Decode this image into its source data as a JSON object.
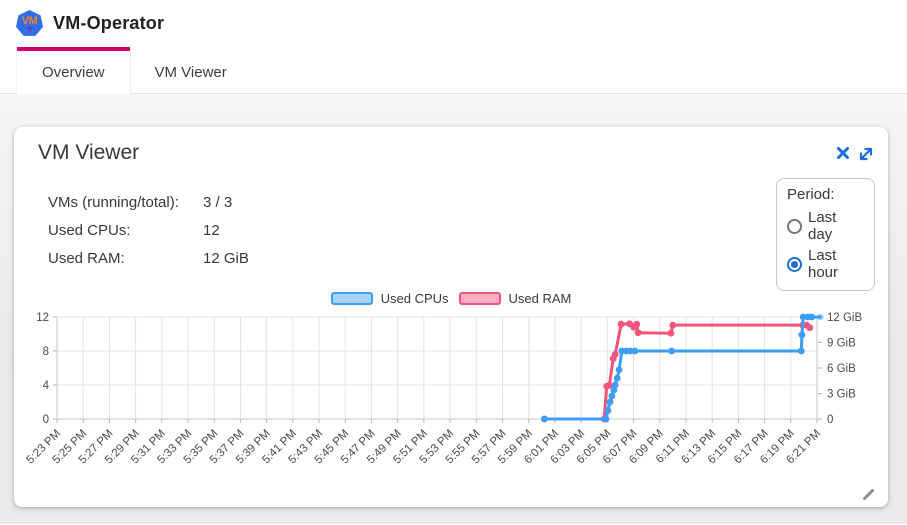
{
  "header": {
    "app_title": "VM-Operator",
    "logo_text": "VM"
  },
  "tabs": [
    {
      "label": "Overview",
      "active": true
    },
    {
      "label": "VM Viewer",
      "active": false
    }
  ],
  "panel": {
    "title": "VM Viewer",
    "stats": [
      {
        "label": "VMs (running/total):",
        "value": "3 / 3"
      },
      {
        "label": "Used CPUs:",
        "value": "12"
      },
      {
        "label": "Used RAM:",
        "value": "12 GiB"
      }
    ],
    "period": {
      "label": "Period:",
      "options": [
        {
          "label": "Last day",
          "selected": false
        },
        {
          "label": "Last hour",
          "selected": true
        }
      ]
    }
  },
  "colors": {
    "accent_tab": "#d4006e",
    "icon_blue": "#1a6fd4",
    "k8s_blue": "#326de6",
    "cpu_line": "#3d9df3",
    "cpu_fill": "#a9d2f7",
    "ram_line": "#f2547c",
    "ram_fill": "#f9afc1"
  },
  "chart_data": {
    "type": "line",
    "title": "",
    "grid": true,
    "legend_position": "top-center",
    "legend": [
      {
        "name": "Used CPUs",
        "color": "#3d9df3",
        "fill": "#a9d2f7"
      },
      {
        "name": "Used RAM",
        "color": "#f2547c",
        "fill": "#f9afc1"
      }
    ],
    "x_tick_labels": [
      "5:23 PM",
      "5:25 PM",
      "5:27 PM",
      "5:29 PM",
      "5:31 PM",
      "5:33 PM",
      "5:35 PM",
      "5:37 PM",
      "5:39 PM",
      "5:41 PM",
      "5:43 PM",
      "5:45 PM",
      "5:47 PM",
      "5:49 PM",
      "5:51 PM",
      "5:53 PM",
      "5:55 PM",
      "5:57 PM",
      "5:59 PM",
      "6:01 PM",
      "6:03 PM",
      "6:05 PM",
      "6:07 PM",
      "6:09 PM",
      "6:11 PM",
      "6:13 PM",
      "6:15 PM",
      "6:17 PM",
      "6:19 PM",
      "6:21 PM"
    ],
    "x_unit": "minutes after 5:23 PM",
    "x_range_minutes": [
      0,
      58
    ],
    "left_axis": {
      "ticks": [
        0,
        4,
        8,
        12
      ],
      "range": [
        0,
        12
      ]
    },
    "right_axis": {
      "tick_labels": [
        "0",
        "3 GiB",
        "6 GiB",
        "9 GiB",
        "12 GiB"
      ],
      "range_gib": [
        0,
        12
      ]
    },
    "series": [
      {
        "name": "Used CPUs",
        "axis": "left",
        "color": "#3d9df3",
        "last_point_faded": true,
        "points": [
          [
            37.2,
            0
          ],
          [
            41.9,
            0
          ],
          [
            42.05,
            1
          ],
          [
            42.2,
            2
          ],
          [
            42.35,
            2.7
          ],
          [
            42.5,
            3.4
          ],
          [
            42.6,
            4
          ],
          [
            42.75,
            4.8
          ],
          [
            42.9,
            5.8
          ],
          [
            43.1,
            8
          ],
          [
            43.45,
            8
          ],
          [
            43.75,
            8
          ],
          [
            44.1,
            8
          ],
          [
            46.9,
            8
          ],
          [
            56.8,
            8
          ],
          [
            56.85,
            9.9
          ],
          [
            56.95,
            12
          ],
          [
            57.3,
            12
          ],
          [
            57.6,
            12
          ],
          [
            58.25,
            12
          ]
        ]
      },
      {
        "name": "Used RAM",
        "axis": "right",
        "color": "#f2547c",
        "points": [
          [
            37.2,
            0
          ],
          [
            41.75,
            0
          ],
          [
            41.95,
            3.85
          ],
          [
            42.15,
            3.95
          ],
          [
            42.45,
            7.1
          ],
          [
            42.6,
            7.6
          ],
          [
            43.05,
            11.15
          ],
          [
            43.7,
            11.2
          ],
          [
            44.0,
            10.8
          ],
          [
            44.25,
            11.15
          ],
          [
            44.35,
            10.15
          ],
          [
            46.85,
            10.1
          ],
          [
            47.0,
            11.05
          ],
          [
            56.9,
            11.05
          ],
          [
            57.2,
            11.05
          ],
          [
            57.45,
            10.75
          ]
        ]
      }
    ]
  }
}
